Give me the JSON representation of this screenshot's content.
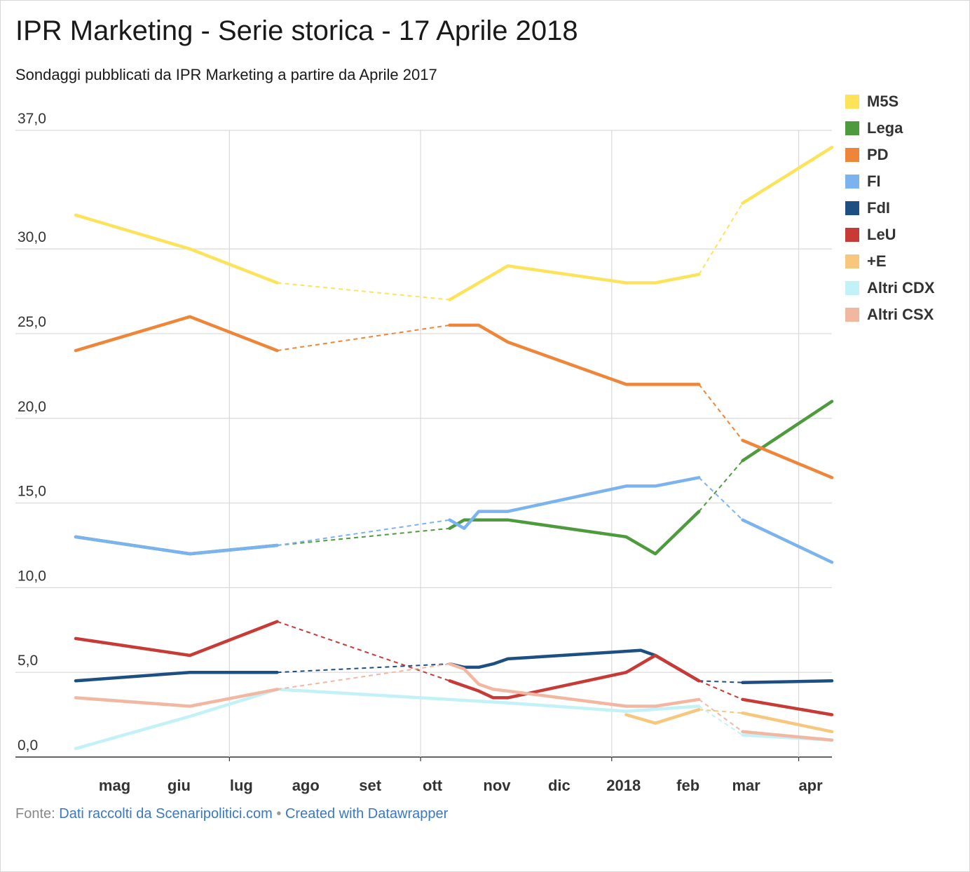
{
  "title": "IPR Marketing - Serie storica - 17 Aprile 2018",
  "subtitle": "Sondaggi pubblicati da IPR Marketing a partire da Aprile 2017",
  "footer": {
    "source_label": "Fonte:",
    "source_text": "Dati raccolti da Scenaripolitici.com",
    "separator": "•",
    "credit_text": "Created with Datawrapper"
  },
  "chart_data": {
    "type": "line",
    "y_ticks": [
      "0,0",
      "5,0",
      "10,0",
      "15,0",
      "20,0",
      "25,0",
      "30,0",
      "37,0"
    ],
    "y_tick_values": [
      0,
      5,
      10,
      15,
      20,
      25,
      30,
      37
    ],
    "ylim": [
      0,
      37
    ],
    "xlim": [
      "2017-04-18",
      "2018-04-17"
    ],
    "x_ticks": [
      {
        "label": "mag",
        "date": "2017-05-01"
      },
      {
        "label": "giu",
        "date": "2017-06-01"
      },
      {
        "label": "lug",
        "date": "2017-07-01"
      },
      {
        "label": "ago",
        "date": "2017-08-01"
      },
      {
        "label": "set",
        "date": "2017-09-01"
      },
      {
        "label": "ott",
        "date": "2017-10-01"
      },
      {
        "label": "nov",
        "date": "2017-11-01"
      },
      {
        "label": "dic",
        "date": "2017-12-01"
      },
      {
        "label": "2018",
        "date": "2018-01-01"
      },
      {
        "label": "feb",
        "date": "2018-02-01"
      },
      {
        "label": "mar",
        "date": "2018-03-01"
      },
      {
        "label": "apr",
        "date": "2018-04-01"
      }
    ],
    "grid": true,
    "legend_position": "right",
    "series": [
      {
        "name": "M5S",
        "color": "#fce35a",
        "points": [
          [
            "2017-04-18",
            32.0
          ],
          [
            "2017-06-12",
            30.0
          ],
          [
            "2017-07-24",
            28.0
          ],
          [
            "2017-10-15",
            27.0
          ],
          [
            "2017-11-12",
            29.0
          ],
          [
            "2018-01-08",
            28.0
          ],
          [
            "2018-01-22",
            28.0
          ],
          [
            "2018-02-12",
            28.5
          ],
          [
            "2018-03-05",
            32.7
          ],
          [
            "2018-04-17",
            36.0
          ]
        ]
      },
      {
        "name": "Lega",
        "color": "#4e9b3e",
        "points": [
          [
            "2017-04-18",
            13.0
          ],
          [
            "2017-06-12",
            12.0
          ],
          [
            "2017-07-24",
            12.5
          ],
          [
            "2017-10-15",
            13.5
          ],
          [
            "2017-10-22",
            14.0
          ],
          [
            "2017-11-12",
            14.0
          ],
          [
            "2018-01-08",
            13.0
          ],
          [
            "2018-01-22",
            12.0
          ],
          [
            "2018-02-12",
            14.5
          ],
          [
            "2018-03-05",
            17.5
          ],
          [
            "2018-04-17",
            21.0
          ]
        ]
      },
      {
        "name": "PD",
        "color": "#ef8539",
        "points": [
          [
            "2017-04-18",
            24.0
          ],
          [
            "2017-06-12",
            26.0
          ],
          [
            "2017-07-24",
            24.0
          ],
          [
            "2017-10-15",
            25.5
          ],
          [
            "2017-10-29",
            25.5
          ],
          [
            "2017-11-12",
            24.5
          ],
          [
            "2018-01-08",
            22.0
          ],
          [
            "2018-02-12",
            22.0
          ],
          [
            "2018-03-05",
            18.7
          ],
          [
            "2018-04-17",
            16.5
          ]
        ]
      },
      {
        "name": "FI",
        "color": "#7ab3ee",
        "points": [
          [
            "2017-04-18",
            13.0
          ],
          [
            "2017-06-12",
            12.0
          ],
          [
            "2017-07-24",
            12.5
          ],
          [
            "2017-10-15",
            14.0
          ],
          [
            "2017-10-22",
            13.5
          ],
          [
            "2017-10-29",
            14.5
          ],
          [
            "2017-11-12",
            14.5
          ],
          [
            "2018-01-08",
            16.0
          ],
          [
            "2018-01-22",
            16.0
          ],
          [
            "2018-02-12",
            16.5
          ],
          [
            "2018-03-05",
            14.0
          ],
          [
            "2018-04-17",
            11.5
          ]
        ]
      },
      {
        "name": "FdI",
        "color": "#1e4f82",
        "points": [
          [
            "2017-04-18",
            4.5
          ],
          [
            "2017-06-12",
            5.0
          ],
          [
            "2017-07-24",
            5.0
          ],
          [
            "2017-10-15",
            5.5
          ],
          [
            "2017-10-22",
            5.3
          ],
          [
            "2017-10-29",
            5.3
          ],
          [
            "2017-11-05",
            5.5
          ],
          [
            "2017-11-12",
            5.8
          ],
          [
            "2018-01-15",
            6.3
          ],
          [
            "2018-01-22",
            6.0
          ],
          [
            "2018-02-12",
            4.5
          ],
          [
            "2018-03-05",
            4.4
          ],
          [
            "2018-04-17",
            4.5
          ]
        ]
      },
      {
        "name": "LeU",
        "color": "#c83a36",
        "points": [
          [
            "2017-04-18",
            7.0
          ],
          [
            "2017-06-12",
            6.0
          ],
          [
            "2017-07-24",
            8.0
          ],
          [
            "2017-10-15",
            4.5
          ],
          [
            "2017-10-22",
            4.2
          ],
          [
            "2017-10-29",
            3.9
          ],
          [
            "2017-11-05",
            3.5
          ],
          [
            "2017-11-12",
            3.5
          ],
          [
            "2018-01-08",
            5.0
          ],
          [
            "2018-01-22",
            6.0
          ],
          [
            "2018-02-12",
            4.5
          ],
          [
            "2018-03-05",
            3.4
          ],
          [
            "2018-04-17",
            2.5
          ]
        ]
      },
      {
        "name": "+E",
        "color": "#f7c77d",
        "points": [
          [
            "2018-01-08",
            2.5
          ],
          [
            "2018-01-22",
            2.0
          ],
          [
            "2018-02-12",
            2.8
          ],
          [
            "2018-03-05",
            2.6
          ],
          [
            "2018-04-17",
            1.5
          ]
        ]
      },
      {
        "name": "Altri CDX",
        "color": "#c3f1f8",
        "points": [
          [
            "2017-04-18",
            0.5
          ],
          [
            "2017-06-12",
            2.4
          ],
          [
            "2017-07-24",
            4.0
          ],
          [
            "2017-11-12",
            3.2
          ],
          [
            "2018-01-08",
            2.7
          ],
          [
            "2018-02-12",
            3.0
          ],
          [
            "2018-03-05",
            1.3
          ],
          [
            "2018-04-17",
            1.0
          ]
        ]
      },
      {
        "name": "Altri CSX",
        "color": "#f2b7a1",
        "points": [
          [
            "2017-04-18",
            3.5
          ],
          [
            "2017-06-12",
            3.0
          ],
          [
            "2017-07-24",
            4.0
          ],
          [
            "2017-10-15",
            5.5
          ],
          [
            "2017-10-22",
            5.2
          ],
          [
            "2017-10-29",
            4.3
          ],
          [
            "2017-11-05",
            4.0
          ],
          [
            "2017-11-12",
            3.9
          ],
          [
            "2018-01-08",
            3.0
          ],
          [
            "2018-01-22",
            3.0
          ],
          [
            "2018-02-12",
            3.4
          ],
          [
            "2018-03-05",
            1.5
          ],
          [
            "2018-04-17",
            1.0
          ]
        ]
      }
    ],
    "dashed_gaps": [
      [
        "2017-07-24",
        "2017-10-15"
      ],
      [
        "2018-02-12",
        "2018-03-05"
      ]
    ]
  }
}
